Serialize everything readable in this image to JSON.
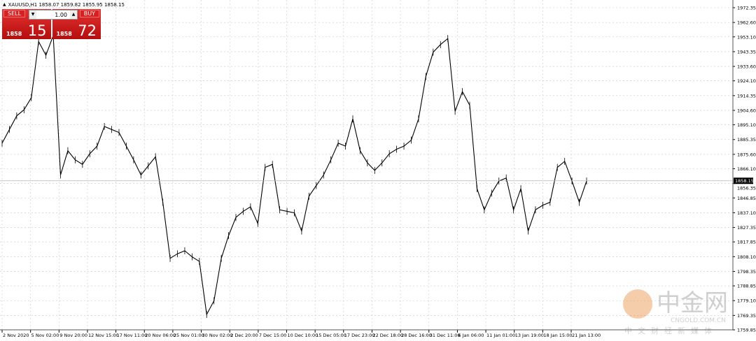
{
  "window": {
    "symbol_info": "XAUUSD,H1  1858.07 1859.82 1855.95 1858.15"
  },
  "trade_panel": {
    "sell_label": "SELL",
    "buy_label": "BUY",
    "lot_size": "1.00",
    "sell_price_prefix": "1858",
    "sell_price_big": "15",
    "buy_price_prefix": "1858",
    "buy_price_big": "72",
    "sell_color": "#d21e1e",
    "buy_color": "#d21e1e"
  },
  "watermark": {
    "brand": "中金网",
    "domain": "CNGOLD.COM.CN",
    "slogan": "中文财经新媒体"
  },
  "chart_data": {
    "type": "line",
    "symbol": "XAUUSD",
    "timeframe": "H1",
    "current_price": "1858.15",
    "grid": true,
    "ylim": [
      1759.85,
      1972.35
    ],
    "y_ticks": [
      "1972.35",
      "1962.60",
      "1953.10",
      "1943.35",
      "1933.60",
      "1924.10",
      "1914.35",
      "1904.60",
      "1895.10",
      "1885.35",
      "1875.60",
      "1866.10",
      "1856.35",
      "1846.85",
      "1837.10",
      "1827.35",
      "1817.85",
      "1808.10",
      "1798.35",
      "1788.85",
      "1779.10",
      "1769.35",
      "1759.85"
    ],
    "x_ticks": [
      "2 Nov 2020",
      "5 Nov 02:00",
      "9 Nov 20:00",
      "12 Nov 15:00",
      "17 Nov 11:00",
      "20 Nov 06:00",
      "25 Nov 01:00",
      "30 Nov 02:00",
      "2 Dec 20:00",
      "7 Dec 15:00",
      "10 Dec 10:00",
      "15 Dec 05:00",
      "17 Dec 23:00",
      "22 Dec 18:00",
      "28 Dec 16:00",
      "31 Dec 11:00",
      "6 Jan 06:00",
      "11 Jan 01:00",
      "13 Jan 19:00",
      "18 Jan 15:00",
      "21 Jan 13:00"
    ],
    "values": [
      1883,
      1892,
      1901,
      1905,
      1913,
      1950,
      1941,
      1954,
      1862,
      1878,
      1872,
      1869,
      1876,
      1881,
      1894,
      1892,
      1890,
      1881,
      1872,
      1862,
      1868,
      1874,
      1844,
      1807,
      1810,
      1812,
      1808,
      1805,
      1770,
      1779,
      1807,
      1822,
      1834,
      1838,
      1841,
      1830,
      1867,
      1869,
      1839,
      1838,
      1837,
      1825,
      1848,
      1855,
      1862,
      1872,
      1883,
      1881,
      1899,
      1878,
      1870,
      1865,
      1870,
      1876,
      1879,
      1881,
      1885,
      1899,
      1927,
      1943,
      1948,
      1952,
      1904,
      1917,
      1908,
      1853,
      1839,
      1850,
      1858,
      1860,
      1839,
      1853,
      1825,
      1839,
      1842,
      1844,
      1867,
      1871,
      1858,
      1844,
      1858
    ]
  }
}
